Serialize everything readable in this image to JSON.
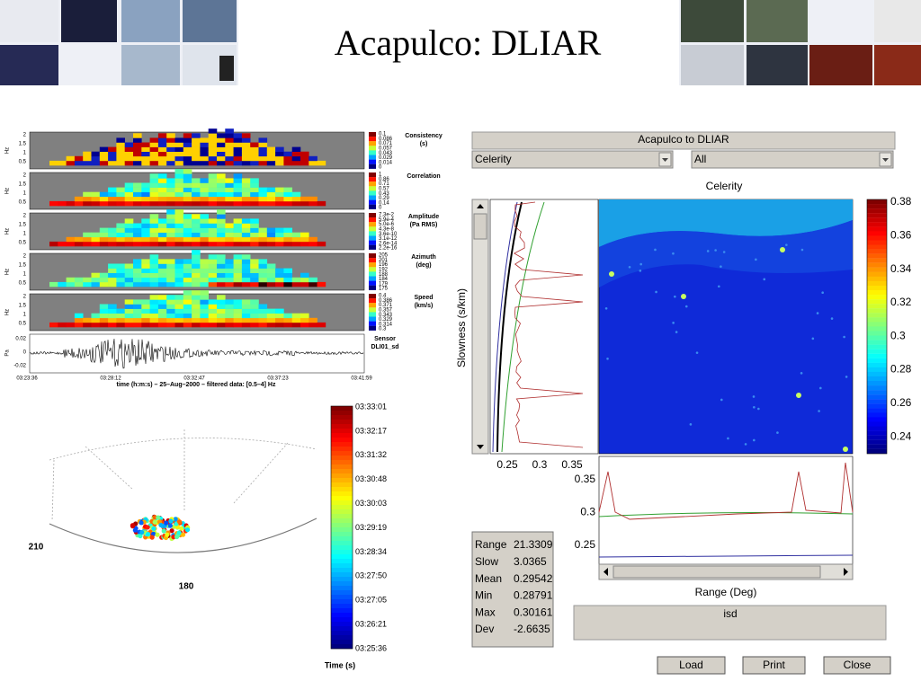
{
  "header": {
    "title": "Acapulco: DLIAR"
  },
  "spectrogram_figure": {
    "panels": [
      {
        "y_label": "Hz",
        "y_ticks": [
          "2",
          "1.5",
          "1",
          "0.5"
        ],
        "colorbar_title": [
          "Consistency",
          "(s)"
        ],
        "colorbar_ticks": [
          "0.1",
          "0.086",
          "0.071",
          "0.057",
          "0.043",
          "0.029",
          "0.014",
          "0"
        ]
      },
      {
        "y_label": "Hz",
        "y_ticks": [
          "2",
          "1.5",
          "1",
          "0.5"
        ],
        "colorbar_title": [
          "Correlation"
        ],
        "colorbar_ticks": [
          "1",
          "0.86",
          "0.71",
          "0.57",
          "0.43",
          "0.29",
          "0.14",
          "0"
        ]
      },
      {
        "y_label": "Hz",
        "y_ticks": [
          "2",
          "1.5",
          "1",
          "0.5"
        ],
        "colorbar_title": [
          "Amplitude",
          "(Pa RMS)"
        ],
        "colorbar_ticks": [
          "7.3e-2",
          "5.9e-4",
          "5.0e-6",
          "4.3e-8",
          "3.6e-10",
          "3.1e-12",
          "2.6e-14",
          "2.2e-16"
        ]
      },
      {
        "y_label": "Hz",
        "y_ticks": [
          "2",
          "1.5",
          "1",
          "0.5"
        ],
        "colorbar_title": [
          "Azimuth",
          "(deg)"
        ],
        "colorbar_ticks": [
          "205",
          "201",
          "196",
          "192",
          "188",
          "184",
          "179",
          "175"
        ]
      },
      {
        "y_label": "Hz",
        "y_ticks": [
          "2",
          "1.5",
          "1",
          "0.5"
        ],
        "colorbar_title": [
          "Speed",
          "(km/s)"
        ],
        "colorbar_ticks": [
          "0.4",
          "0.386",
          "0.371",
          "0.357",
          "0.343",
          "0.329",
          "0.314",
          "0.3"
        ]
      }
    ],
    "seismogram": {
      "y_label": "Pa",
      "y_ticks": [
        "0.02",
        "0",
        "-0.02"
      ],
      "label": [
        "Sensor",
        "DLI01_sd"
      ]
    },
    "time_ticks": [
      "03:23:36",
      "03:28:12",
      "03:32:47",
      "03:37:23",
      "03:41:59"
    ],
    "x_label": "time (h:m:s) – 25–Aug–2000 – filtered data: [0.5–4] Hz"
  },
  "polar_figure": {
    "azimuth_labels": [
      "210",
      "180"
    ],
    "colorbar_ticks": [
      "03:33:01",
      "03:32:17",
      "03:31:32",
      "03:30:48",
      "03:30:03",
      "03:29:19",
      "03:28:34",
      "03:27:50",
      "03:27:05",
      "03:26:21",
      "03:25:36"
    ],
    "colorbar_label": "Time (s)"
  },
  "gui": {
    "window_title": "Acapulco to DLIAR",
    "dropdowns": [
      "Celerity",
      "All"
    ],
    "plot_title": "Celerity",
    "colorbar_ticks": [
      "0.38",
      "0.36",
      "0.34",
      "0.32",
      "0.3",
      "0.28",
      "0.26",
      "0.24"
    ],
    "slowness_label": "Slowness (s/km)",
    "slowness_x_ticks": [
      "0.25",
      "0.3",
      "0.35"
    ],
    "range_y_ticks": [
      "0.35",
      "0.3",
      "0.25"
    ],
    "range_label": "Range (Deg)",
    "stats": [
      [
        "Range",
        "21.3309"
      ],
      [
        "Slow",
        "3.0365"
      ],
      [
        "Mean",
        "0.29542"
      ],
      [
        "Min",
        "0.28791"
      ],
      [
        "Max",
        "0.30161"
      ],
      [
        "Dev",
        "-2.6635"
      ]
    ],
    "station_box": "isd",
    "buttons": [
      "Load",
      "Print",
      "Close"
    ]
  }
}
